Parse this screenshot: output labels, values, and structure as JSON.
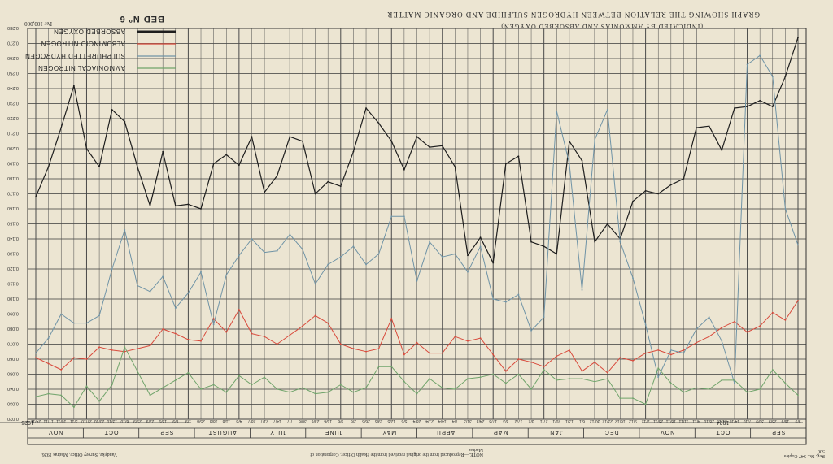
{
  "caption": {
    "title": "Graph Showing The Relation Between Hydrogen Sulphide And Organic Matter",
    "subtitle": "(Indicated By Ammonias And Absorbed Oxygen)",
    "bed": "BED Nº 6",
    "unit": "Per 100,000",
    "note": "NOTE.—Reproduced from the original received from the Health Officer, Corporation of Madras.",
    "printer": "Vandyke, Survey Office, Madras 1926.",
    "reg": "Reg. No. 547  Copies 500"
  },
  "legend": [
    {
      "name": "Absorbed Oxygen",
      "color": "#1e1e1e"
    },
    {
      "name": "Albuminoid Nitrogen",
      "color": "#d8493b"
    },
    {
      "name": "Sulphuretted Hydrogen",
      "color": "#6f93a6"
    },
    {
      "name": "Ammoniacal Nitrogen",
      "color": "#6fa36a"
    }
  ],
  "years": [
    {
      "label": "1924",
      "month_from": 0,
      "month_to": 3
    },
    {
      "label": "1925",
      "month_from": 11,
      "month_to": 17
    }
  ],
  "chart_data": {
    "type": "line",
    "title": "Graph Showing The Relation Between Hydrogen Sulphide And Organic Matter",
    "ylabel": "Per 100,000",
    "yticks": [
      "0.020",
      "0.030",
      "0.040",
      "0.050",
      "0.060",
      "0.070",
      "0.080",
      "0.090",
      "0.100",
      "0.110",
      "0.120",
      "0.130",
      "0.140",
      "0.150",
      "0.160",
      "0.170",
      "0.180",
      "0.190",
      "0.200",
      "0.210",
      "0.220",
      "0.230",
      "0.240",
      "0.250",
      "0.260",
      "0.270",
      "0.280"
    ],
    "ylim": [
      0.02,
      0.28
    ],
    "months": [
      "SEP",
      "OCT",
      "NOV",
      "DEC",
      "JAN",
      "MAR",
      "APRIL",
      "MAY",
      "JUNE",
      "JULY",
      "AUGUST",
      "SEP",
      "OCT",
      "NOV"
    ],
    "x": [
      "9/9",
      "16/9",
      "23/9",
      "30/9",
      "7/10",
      "14/10",
      "21/10",
      "28/10",
      "4/11",
      "11/11",
      "18/11",
      "25/11",
      "2/12",
      "9/12",
      "16/12",
      "23/12",
      "30/12",
      "6/1",
      "13/1",
      "20/1",
      "27/1",
      "3/2",
      "17/2",
      "3/3",
      "17/3",
      "24/3",
      "31/3",
      "7/4",
      "14/4",
      "21/4",
      "28/4",
      "5/5",
      "12/5",
      "19/5",
      "26/5",
      "2/6",
      "9/6",
      "16/6",
      "23/6",
      "30/6",
      "7/7",
      "14/7",
      "21/7",
      "28/7",
      "4/8",
      "11/8",
      "18/8",
      "25/8",
      "1/9",
      "8/9",
      "15/9",
      "22/9",
      "29/9",
      "6/10",
      "13/10",
      "20/10",
      "27/10",
      "3/11",
      "10/11",
      "17/11",
      "24/11"
    ],
    "grid": true,
    "series": [
      {
        "name": "Absorbed Oxygen",
        "color": "#1e1e1e",
        "values": [
          0.274,
          0.248,
          0.228,
          0.232,
          0.228,
          0.227,
          0.199,
          0.215,
          0.214,
          0.18,
          0.176,
          0.17,
          0.172,
          0.165,
          0.14,
          0.15,
          0.138,
          0.192,
          0.205,
          0.13,
          0.135,
          0.138,
          0.195,
          0.19,
          0.124,
          0.141,
          0.129,
          0.188,
          0.202,
          0.201,
          0.208,
          0.186,
          0.205,
          0.217,
          0.227,
          0.198,
          0.175,
          0.178,
          0.17,
          0.205,
          0.208,
          0.182,
          0.171,
          0.208,
          0.189,
          0.196,
          0.19,
          0.16,
          0.163,
          0.162,
          0.198,
          0.162,
          0.188,
          0.218,
          0.226,
          0.188,
          0.2,
          0.242,
          0.214,
          0.188,
          0.168
        ]
      },
      {
        "name": "Albuminoid Nitrogen",
        "color": "#d8493b",
        "values": [
          0.099,
          0.086,
          0.091,
          0.082,
          0.078,
          0.085,
          0.081,
          0.075,
          0.071,
          0.066,
          0.063,
          0.066,
          0.064,
          0.059,
          0.061,
          0.051,
          0.058,
          0.052,
          0.066,
          0.062,
          0.055,
          0.058,
          0.06,
          0.052,
          0.063,
          0.074,
          0.072,
          0.075,
          0.064,
          0.064,
          0.071,
          0.063,
          0.087,
          0.067,
          0.065,
          0.067,
          0.07,
          0.084,
          0.089,
          0.082,
          0.076,
          0.07,
          0.075,
          0.077,
          0.093,
          0.078,
          0.087,
          0.072,
          0.073,
          0.077,
          0.08,
          0.069,
          0.067,
          0.065,
          0.066,
          0.068,
          0.06,
          0.061,
          0.053,
          0.057,
          0.061
        ]
      },
      {
        "name": "Sulphuretted Hydrogen",
        "color": "#6f93a6",
        "values": [
          0.136,
          0.16,
          0.248,
          0.262,
          0.256,
          0.044,
          0.072,
          0.088,
          0.08,
          0.064,
          0.066,
          0.048,
          0.083,
          0.114,
          0.138,
          0.226,
          0.206,
          0.106,
          0.19,
          0.225,
          0.088,
          0.079,
          0.103,
          0.098,
          0.1,
          0.135,
          0.118,
          0.13,
          0.128,
          0.138,
          0.112,
          0.155,
          0.155,
          0.13,
          0.123,
          0.135,
          0.128,
          0.123,
          0.11,
          0.133,
          0.143,
          0.132,
          0.131,
          0.14,
          0.129,
          0.116,
          0.083,
          0.118,
          0.104,
          0.094,
          0.115,
          0.105,
          0.109,
          0.146,
          0.12,
          0.089,
          0.084,
          0.084,
          0.09,
          0.074,
          0.064
        ]
      },
      {
        "name": "Ammoniacal Nitrogen",
        "color": "#6fa36a",
        "values": [
          0.036,
          0.044,
          0.053,
          0.04,
          0.038,
          0.046,
          0.046,
          0.04,
          0.041,
          0.038,
          0.044,
          0.054,
          0.03,
          0.034,
          0.034,
          0.047,
          0.045,
          0.047,
          0.047,
          0.046,
          0.053,
          0.04,
          0.05,
          0.044,
          0.05,
          0.048,
          0.047,
          0.04,
          0.041,
          0.047,
          0.037,
          0.045,
          0.055,
          0.055,
          0.041,
          0.038,
          0.043,
          0.038,
          0.037,
          0.041,
          0.038,
          0.04,
          0.048,
          0.043,
          0.049,
          0.038,
          0.043,
          0.04,
          0.051,
          0.046,
          0.041,
          0.036,
          0.052,
          0.068,
          0.043,
          0.032,
          0.042,
          0.028,
          0.036,
          0.037,
          0.035
        ]
      }
    ]
  }
}
